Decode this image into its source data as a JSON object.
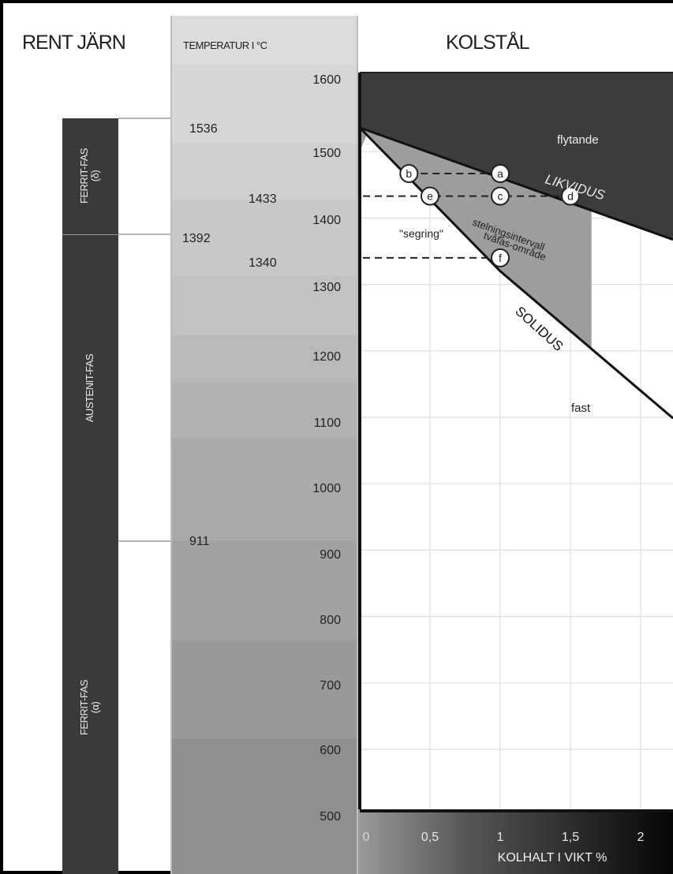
{
  "headers": {
    "left": "RENT JÄRN",
    "temperature": "TEMPERATUR I °C",
    "right": "KOLSTÅL"
  },
  "phases": {
    "delta": "FERRIT-FAS\n(δ)",
    "austenite": "AUSTENIT-FAS",
    "alpha": "FERRIT-FAS\n(α)"
  },
  "temperature_scale": {
    "ticks": [
      "1600",
      "1500",
      "1400",
      "1300",
      "1200",
      "1100",
      "1000",
      "900",
      "800",
      "700",
      "600",
      "500"
    ],
    "special_points": [
      "1536",
      "1433",
      "1392",
      "1340",
      "911"
    ]
  },
  "chart_data": {
    "type": "phase-diagram",
    "title": "KOLSTÅL",
    "xlabel": "KOLHALT I VIKT %",
    "ylabel": "TEMPERATUR I °C",
    "xlim": [
      0,
      2.2
    ],
    "ylim": [
      480,
      1650
    ],
    "x_ticks": [
      "0",
      "0,5",
      "1",
      "1,5",
      "2"
    ],
    "liquidus": [
      [
        0,
        1536
      ],
      [
        2,
        1385
      ]
    ],
    "solidus": [
      [
        0,
        1536
      ],
      [
        1,
        1320
      ],
      [
        2,
        1140
      ]
    ],
    "region_labels": {
      "liquid": "flytande",
      "liquidus": "LIKVIDUS",
      "solidus": "SOLIDUS",
      "interval": "stelningsintervall\ntvåfas-område",
      "segregation": "\"segring\"",
      "solid": "fast"
    },
    "points": [
      {
        "label": "a",
        "x": 1.0,
        "y": 1467
      },
      {
        "label": "b",
        "x": 0.35,
        "y": 1467
      },
      {
        "label": "c",
        "x": 1.0,
        "y": 1433
      },
      {
        "label": "d",
        "x": 1.5,
        "y": 1433
      },
      {
        "label": "e",
        "x": 0.5,
        "y": 1433
      },
      {
        "label": "f",
        "x": 1.0,
        "y": 1340
      }
    ],
    "dashed_levels": [
      {
        "y": 1467,
        "x_from": 0.35,
        "x_to": 1.0
      },
      {
        "y": 1433,
        "x_from": 0,
        "x_to": 1.5
      },
      {
        "y": 1340,
        "x_from": 0,
        "x_to": 1.0
      }
    ]
  }
}
